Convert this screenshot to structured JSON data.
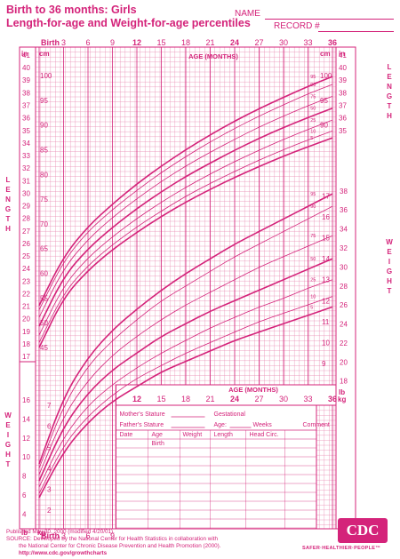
{
  "header": {
    "title_line1": "Birth to 36 months: Girls",
    "title_line2": "Length-for-age and Weight-for-age percentiles",
    "name_label": "NAME",
    "record_label": "RECORD #"
  },
  "colors": {
    "accent": "#d4237a",
    "grid": "#e88bb3",
    "bold_curve": "#d4237a"
  },
  "top_axis": {
    "birth_label": "Birth",
    "ticks": [
      "3",
      "6",
      "9",
      "12",
      "15",
      "18",
      "21",
      "24",
      "27",
      "30",
      "33",
      "36"
    ],
    "title": "AGE (MONTHS)"
  },
  "bottom_axis": {
    "birth_label": "Birth",
    "ticks": [
      "3",
      "6",
      "9"
    ]
  },
  "weight_age_axis": {
    "title": "AGE (MONTHS)",
    "ticks": [
      "12",
      "15",
      "18",
      "21",
      "24",
      "27",
      "30",
      "33",
      "36"
    ]
  },
  "side_labels": {
    "length": "LENGTH",
    "weight": "WEIGHT",
    "in": "in",
    "cm": "cm",
    "lb": "lb",
    "kg": "kg"
  },
  "record_table": {
    "mothers_stature": "Mother's Stature",
    "fathers_stature": "Father's Stature",
    "gestational": "Gestational",
    "age": "Age:",
    "weeks": "Weeks",
    "comment": "Comment",
    "columns": [
      "Date",
      "Age",
      "Weight",
      "Length",
      "Head Circ."
    ],
    "birth": "Birth"
  },
  "footer": {
    "published": "Published May 30, 2000 (modified 4/20/01).",
    "source_line1": "SOURCE: Developed by the National Center for Health Statistics in collaboration with",
    "source_line2": "the National Center for Chronic Disease Prevention and Health Promotion (2000).",
    "url": "http://www.cdc.gov/growthcharts",
    "logo": "CDC",
    "tagline": "SAFER·HEALTHIER·PEOPLE™"
  },
  "chart_data": [
    {
      "type": "line",
      "title": "Length-for-age percentiles",
      "xlabel": "AGE (MONTHS)",
      "ylabel": "LENGTH",
      "x": [
        0,
        3,
        6,
        9,
        12,
        15,
        18,
        21,
        24,
        27,
        30,
        33,
        36
      ],
      "xlim": [
        0,
        36
      ],
      "ylim_cm": [
        45,
        105
      ],
      "left_in_ticks": [
        "17",
        "18",
        "19",
        "20",
        "21",
        "22",
        "23",
        "24",
        "25",
        "26",
        "27",
        "28",
        "29",
        "30",
        "31",
        "32",
        "33",
        "34",
        "35",
        "36",
        "37",
        "38",
        "39",
        "40",
        "41"
      ],
      "cm_ticks": [
        "45",
        "50",
        "55",
        "60",
        "65",
        "70",
        "75",
        "80",
        "85",
        "90",
        "95",
        "100"
      ],
      "right_cm_ticks": [
        "90",
        "95",
        "100"
      ],
      "right_in_ticks": [
        "35",
        "36",
        "37",
        "38",
        "39",
        "40",
        "41"
      ],
      "series": [
        {
          "name": "95",
          "values": [
            53.5,
            63.4,
            69.5,
            74.0,
            78.1,
            81.7,
            85.0,
            88.0,
            90.8,
            93.3,
            95.6,
            97.8,
            99.8
          ]
        },
        {
          "name": "90",
          "values": [
            52.6,
            62.5,
            68.5,
            72.9,
            76.8,
            80.4,
            83.6,
            86.6,
            89.3,
            91.8,
            94.1,
            96.3,
            98.2
          ]
        },
        {
          "name": "75",
          "values": [
            51.1,
            61.0,
            66.9,
            71.3,
            75.1,
            78.6,
            81.7,
            84.5,
            87.1,
            89.6,
            91.8,
            93.9,
            95.8
          ]
        },
        {
          "name": "50",
          "values": [
            49.3,
            59.3,
            65.0,
            69.3,
            73.1,
            76.5,
            79.6,
            82.3,
            84.9,
            87.3,
            89.5,
            91.5,
            93.4
          ]
        },
        {
          "name": "25",
          "values": [
            47.5,
            57.5,
            63.2,
            67.4,
            71.1,
            74.4,
            77.4,
            80.1,
            82.6,
            84.9,
            87.1,
            89.1,
            91.0
          ]
        },
        {
          "name": "10",
          "values": [
            46.0,
            56.0,
            61.6,
            65.8,
            69.4,
            72.6,
            75.6,
            78.2,
            80.6,
            82.9,
            85.0,
            87.0,
            88.8
          ]
        },
        {
          "name": "5",
          "values": [
            45.0,
            55.1,
            60.6,
            64.8,
            68.3,
            71.5,
            74.4,
            77.0,
            79.4,
            81.6,
            83.7,
            85.6,
            87.4
          ]
        }
      ]
    },
    {
      "type": "line",
      "title": "Weight-for-age percentiles",
      "xlabel": "AGE (MONTHS)",
      "ylabel": "WEIGHT",
      "x": [
        0,
        3,
        6,
        9,
        12,
        15,
        18,
        21,
        24,
        27,
        30,
        33,
        36
      ],
      "xlim": [
        0,
        36
      ],
      "ylim_kg": [
        1.5,
        18
      ],
      "left_lb_ticks": [
        "4",
        "6",
        "8",
        "10",
        "12",
        "14",
        "16"
      ],
      "kg_ticks": [
        "2",
        "3",
        "4",
        "5",
        "6",
        "7"
      ],
      "right_kg_ticks": [
        "9",
        "10",
        "11",
        "12",
        "13",
        "14",
        "15",
        "16",
        "17"
      ],
      "right_lb_ticks": [
        "18",
        "20",
        "22",
        "24",
        "26",
        "28",
        "30",
        "32",
        "34",
        "36",
        "38"
      ],
      "series": [
        {
          "name": "95",
          "values": [
            4.2,
            7.4,
            9.3,
            10.6,
            11.6,
            12.5,
            13.3,
            14.0,
            14.7,
            15.3,
            15.9,
            16.5,
            17.1
          ]
        },
        {
          "name": "90",
          "values": [
            4.0,
            7.0,
            8.9,
            10.1,
            11.1,
            12.0,
            12.7,
            13.4,
            14.1,
            14.7,
            15.3,
            15.9,
            16.5
          ]
        },
        {
          "name": "75",
          "values": [
            3.7,
            6.5,
            8.2,
            9.4,
            10.3,
            11.1,
            11.8,
            12.4,
            13.0,
            13.6,
            14.1,
            14.6,
            15.1
          ]
        },
        {
          "name": "50",
          "values": [
            3.4,
            6.0,
            7.6,
            8.7,
            9.5,
            10.3,
            10.9,
            11.5,
            12.0,
            12.5,
            13.0,
            13.5,
            14.0
          ]
        },
        {
          "name": "25",
          "values": [
            3.1,
            5.5,
            7.0,
            8.0,
            8.8,
            9.5,
            10.1,
            10.7,
            11.2,
            11.7,
            12.1,
            12.6,
            13.0
          ]
        },
        {
          "name": "10",
          "values": [
            2.8,
            5.1,
            6.5,
            7.5,
            8.3,
            8.9,
            9.5,
            10.0,
            10.5,
            11.0,
            11.4,
            11.8,
            12.2
          ]
        },
        {
          "name": "5",
          "values": [
            2.6,
            4.8,
            6.2,
            7.2,
            7.9,
            8.6,
            9.1,
            9.6,
            10.1,
            10.5,
            10.9,
            11.3,
            11.7
          ]
        }
      ]
    }
  ]
}
